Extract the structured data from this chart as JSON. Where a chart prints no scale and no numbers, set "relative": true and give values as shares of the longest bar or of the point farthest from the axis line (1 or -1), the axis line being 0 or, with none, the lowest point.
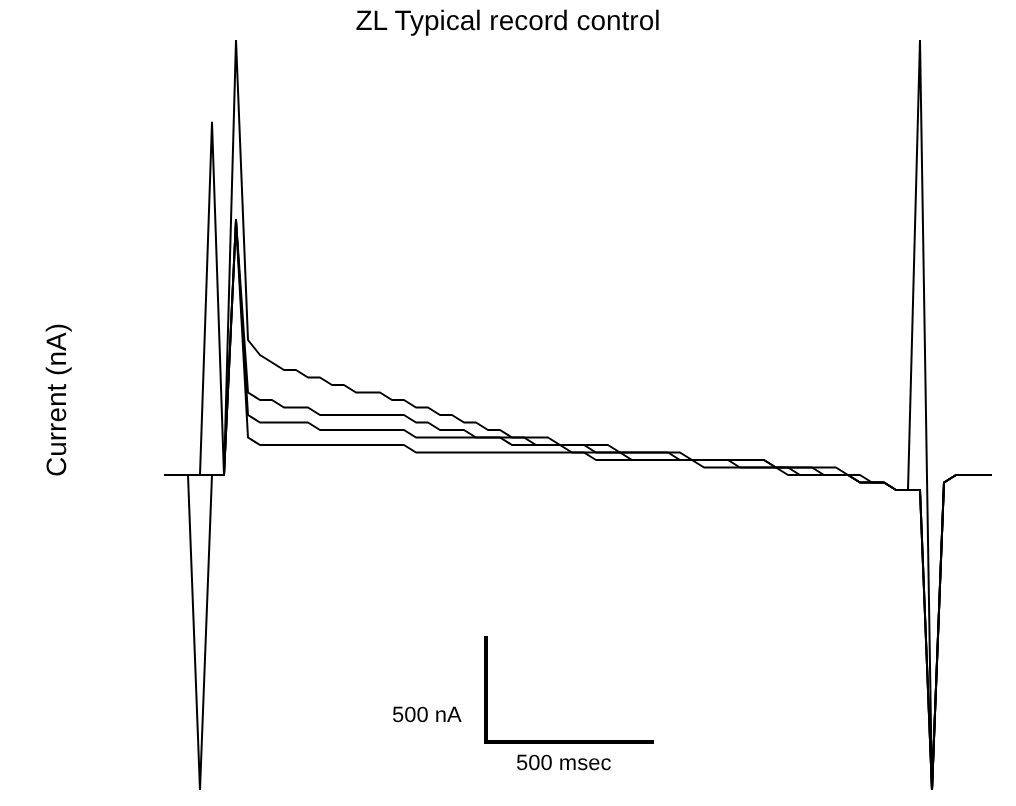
{
  "chart_data": {
    "type": "line",
    "title": "ZL Typical record control",
    "ylabel": "Current (nA)",
    "relative": true,
    "annotations": [
      "500 nA",
      "500 msec"
    ],
    "categories": [
      null,
      null,
      null,
      null,
      null,
      null,
      null,
      null,
      null,
      null,
      null,
      null,
      null,
      null,
      null,
      null,
      null,
      null,
      null,
      null,
      null,
      null,
      null,
      null,
      null,
      null,
      null,
      null,
      null,
      null,
      null,
      null,
      null,
      null,
      null,
      null,
      null,
      null,
      null,
      null,
      null,
      null,
      null,
      null,
      null,
      null,
      null,
      null,
      null,
      null,
      null,
      null,
      null,
      null,
      null,
      null,
      null,
      null,
      null,
      null,
      null,
      null,
      null,
      null,
      null,
      null,
      null,
      null,
      null,
      null
    ],
    "series": [
      {
        "color": "#000000",
        "values": [
          0.42,
          0.42,
          0.42,
          0,
          0.42,
          0.42,
          1,
          0.6,
          0.58,
          0.57,
          0.56,
          0.56,
          0.55,
          0.55,
          0.54,
          0.54,
          0.53,
          0.53,
          0.53,
          0.52,
          0.52,
          0.51,
          0.51,
          0.5,
          0.5,
          0.49,
          0.49,
          0.48,
          0.48,
          0.47,
          0.47,
          0.47,
          0.47,
          0.46,
          0.46,
          0.46,
          0.46,
          0.46,
          0.45,
          0.45,
          0.45,
          0.45,
          0.45,
          0.44,
          0.44,
          0.44,
          0.44,
          0.44,
          0.43,
          0.43,
          0.43,
          0.43,
          0.43,
          0.42,
          0.42,
          0.42,
          0.42,
          0.42,
          0.41,
          0.41,
          0.41,
          0.4,
          0.4,
          1,
          0,
          0.41,
          0.42,
          0.42,
          0.42,
          0.42
        ]
      },
      {
        "color": "#000000",
        "values": [
          0.42,
          0.42,
          0.42,
          0.42,
          0.89,
          0.42,
          0.76,
          0.47,
          0.46,
          0.46,
          0.46,
          0.46,
          0.46,
          0.46,
          0.46,
          0.46,
          0.46,
          0.46,
          0.46,
          0.46,
          0.46,
          0.45,
          0.45,
          0.45,
          0.45,
          0.45,
          0.45,
          0.45,
          0.45,
          0.45,
          0.45,
          0.45,
          0.45,
          0.45,
          0.45,
          0.45,
          0.44,
          0.44,
          0.44,
          0.44,
          0.44,
          0.44,
          0.44,
          0.44,
          0.44,
          0.44,
          0.44,
          0.44,
          0.44,
          0.44,
          0.44,
          0.43,
          0.43,
          0.43,
          0.43,
          0.43,
          0.43,
          0.42,
          0.42,
          0.41,
          0.41,
          0.4,
          0.4,
          0.4,
          0,
          0.41,
          0.42,
          0.42,
          0.42,
          0.42
        ]
      },
      {
        "color": "#000000",
        "values": [
          0.42,
          0.42,
          0.42,
          0.42,
          0.42,
          0.42,
          0.76,
          0.53,
          0.52,
          0.52,
          0.51,
          0.51,
          0.51,
          0.5,
          0.5,
          0.5,
          0.5,
          0.5,
          0.5,
          0.5,
          0.5,
          0.49,
          0.49,
          0.48,
          0.48,
          0.48,
          0.47,
          0.47,
          0.47,
          0.46,
          0.46,
          0.46,
          0.46,
          0.46,
          0.45,
          0.45,
          0.45,
          0.45,
          0.45,
          0.44,
          0.44,
          0.44,
          0.44,
          0.44,
          0.44,
          0.43,
          0.43,
          0.43,
          0.43,
          0.43,
          0.43,
          0.43,
          0.42,
          0.42,
          0.42,
          0.42,
          0.42,
          0.42,
          0.41,
          0.41,
          0.41,
          0.4,
          0.4,
          0.4,
          0,
          0.41,
          0.42,
          0.42,
          0.42,
          0.42
        ]
      },
      {
        "color": "#000000",
        "values": [
          0.42,
          0.42,
          0.42,
          0.42,
          0.42,
          0.42,
          0.76,
          0.5,
          0.49,
          0.49,
          0.49,
          0.49,
          0.49,
          0.48,
          0.48,
          0.48,
          0.48,
          0.48,
          0.48,
          0.48,
          0.48,
          0.47,
          0.47,
          0.47,
          0.47,
          0.47,
          0.47,
          0.47,
          0.47,
          0.47,
          0.47,
          0.46,
          0.46,
          0.46,
          0.46,
          0.46,
          0.45,
          0.45,
          0.45,
          0.45,
          0.45,
          0.45,
          0.45,
          0.45,
          0.44,
          0.44,
          0.44,
          0.44,
          0.44,
          0.44,
          0.44,
          0.43,
          0.43,
          0.43,
          0.43,
          0.42,
          0.42,
          0.42,
          0.41,
          0.41,
          0.41,
          0.4,
          0.4,
          0.4,
          0,
          0.41,
          0.42,
          0.42,
          0.42,
          0.42
        ]
      }
    ]
  }
}
